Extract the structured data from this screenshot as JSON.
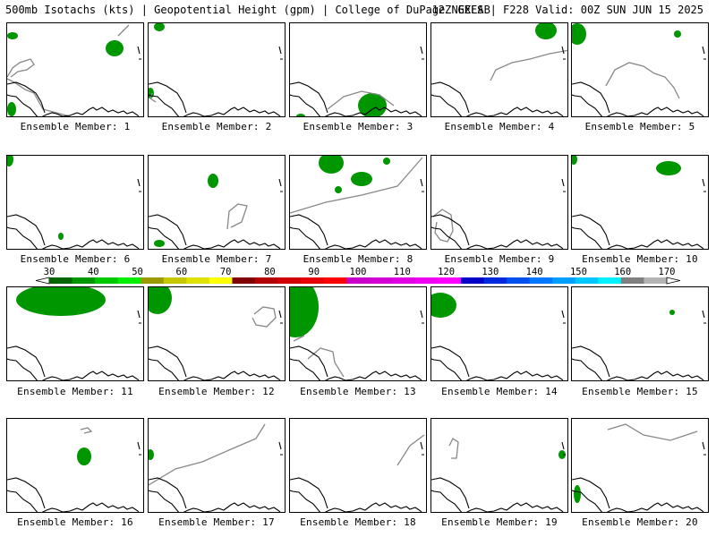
{
  "header": {
    "left": "500mb Isotachs (kts) | Geopotential Height (gpm) | College of DuPage NEXLAB",
    "right": "12Z GEFS | F228 Valid: 00Z SUN JUN 15 2025"
  },
  "panels": [
    {
      "label": "Ensemble Member: 1"
    },
    {
      "label": "Ensemble Member: 2"
    },
    {
      "label": "Ensemble Member: 3"
    },
    {
      "label": "Ensemble Member: 4"
    },
    {
      "label": "Ensemble Member: 5"
    },
    {
      "label": "Ensemble Member: 6"
    },
    {
      "label": "Ensemble Member: 7"
    },
    {
      "label": "Ensemble Member: 8"
    },
    {
      "label": "Ensemble Member: 9"
    },
    {
      "label": "Ensemble Member: 10"
    },
    {
      "label": "Ensemble Member: 11"
    },
    {
      "label": "Ensemble Member: 12"
    },
    {
      "label": "Ensemble Member: 13"
    },
    {
      "label": "Ensemble Member: 14"
    },
    {
      "label": "Ensemble Member: 15"
    },
    {
      "label": "Ensemble Member: 16"
    },
    {
      "label": "Ensemble Member: 17"
    },
    {
      "label": "Ensemble Member: 18"
    },
    {
      "label": "Ensemble Member: 19"
    },
    {
      "label": "Ensemble Member: 20"
    }
  ],
  "colorbar": {
    "ticks": [
      "30",
      "40",
      "50",
      "60",
      "70",
      "80",
      "90",
      "100",
      "110",
      "120",
      "130",
      "140",
      "150",
      "160",
      "170"
    ],
    "colors": [
      "#006400",
      "#009600",
      "#00c800",
      "#00f000",
      "#9b9b00",
      "#c8c800",
      "#e1e100",
      "#ffff00",
      "#800000",
      "#b40000",
      "#d20000",
      "#e60000",
      "#ff0000",
      "#c800c8",
      "#d200d2",
      "#e100e1",
      "#f000f0",
      "#ff00ff",
      "#0000c8",
      "#0028dc",
      "#0050f0",
      "#0078ff",
      "#00a0ff",
      "#00c8ff",
      "#00f0ff",
      "#808080",
      "#b4b4b4"
    ]
  }
}
